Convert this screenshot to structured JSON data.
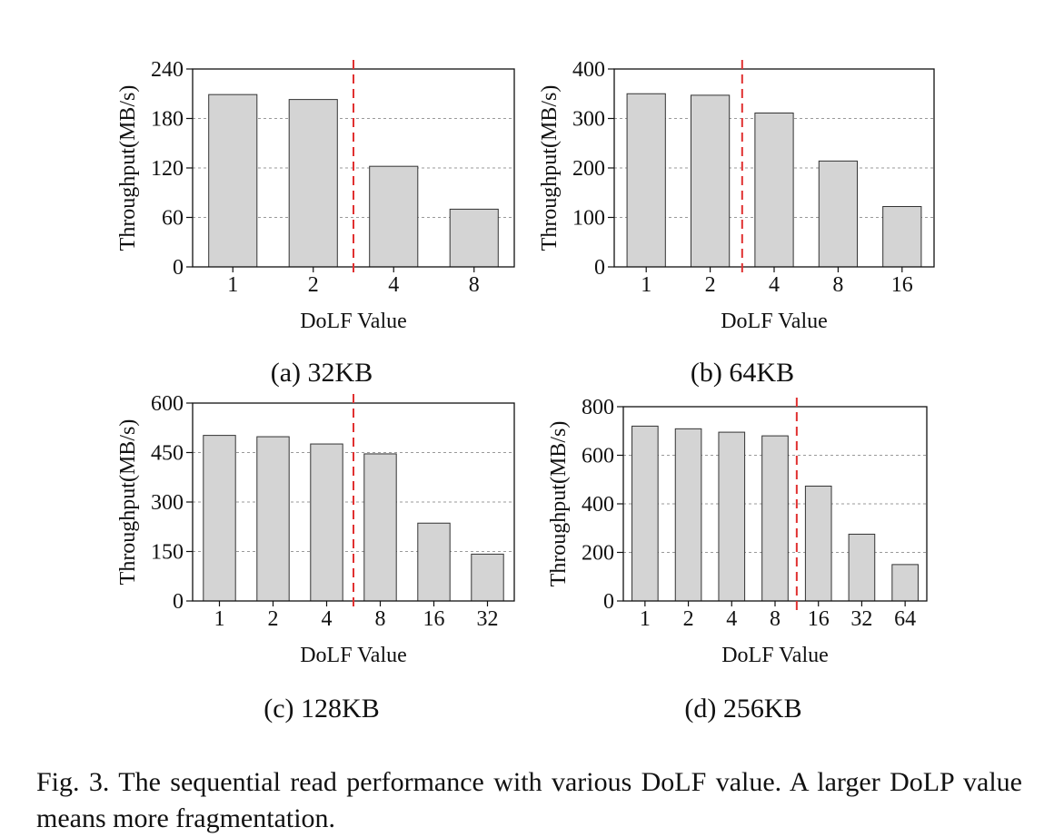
{
  "chart_data": [
    {
      "type": "bar",
      "subcaption": "(a) 32KB",
      "categories": [
        "1",
        "2",
        "4",
        "8"
      ],
      "values": [
        209,
        203,
        122,
        70
      ],
      "xlabel": "DoLF Value",
      "ylabel": "Throughput(MB/s)",
      "ylim": [
        0,
        240
      ],
      "yticks": [
        "0",
        "60",
        "120",
        "180",
        "240"
      ],
      "grid": "horizontal-dashed",
      "divider_after_category": 1,
      "bar_color": "#d4d4d4",
      "divider_color": "#e03030"
    },
    {
      "type": "bar",
      "subcaption": "(b) 64KB",
      "categories": [
        "1",
        "2",
        "4",
        "8",
        "16"
      ],
      "values": [
        350,
        347,
        311,
        214,
        122
      ],
      "xlabel": "DoLF Value",
      "ylabel": "Throughput(MB/s)",
      "ylim": [
        0,
        400
      ],
      "yticks": [
        "0",
        "100",
        "200",
        "300",
        "400"
      ],
      "grid": "horizontal-dashed",
      "divider_after_category": 1,
      "bar_color": "#d4d4d4",
      "divider_color": "#e03030"
    },
    {
      "type": "bar",
      "subcaption": "(c) 128KB",
      "categories": [
        "1",
        "2",
        "4",
        "8",
        "16",
        "32"
      ],
      "values": [
        502,
        498,
        476,
        446,
        236,
        142
      ],
      "xlabel": "DoLF Value",
      "ylabel": "Throughput(MB/s)",
      "ylim": [
        0,
        600
      ],
      "yticks": [
        "0",
        "150",
        "300",
        "450",
        "600"
      ],
      "grid": "horizontal-dashed",
      "divider_after_category": 2,
      "bar_color": "#d4d4d4",
      "divider_color": "#e03030"
    },
    {
      "type": "bar",
      "subcaption": "(d) 256KB",
      "categories": [
        "1",
        "2",
        "4",
        "8",
        "16",
        "32",
        "64"
      ],
      "values": [
        720,
        709,
        695,
        680,
        473,
        275,
        150
      ],
      "xlabel": "DoLF Value",
      "ylabel": "Throughput(MB/s)",
      "ylim": [
        0,
        800
      ],
      "yticks": [
        "0",
        "200",
        "400",
        "600",
        "800"
      ],
      "grid": "horizontal-dashed",
      "divider_after_category": 3,
      "bar_color": "#d4d4d4",
      "divider_color": "#e03030"
    }
  ],
  "caption": {
    "label": "Fig. 3.",
    "text": "The sequential read performance with various DoLF value. A larger DoLP value means more fragmentation."
  }
}
